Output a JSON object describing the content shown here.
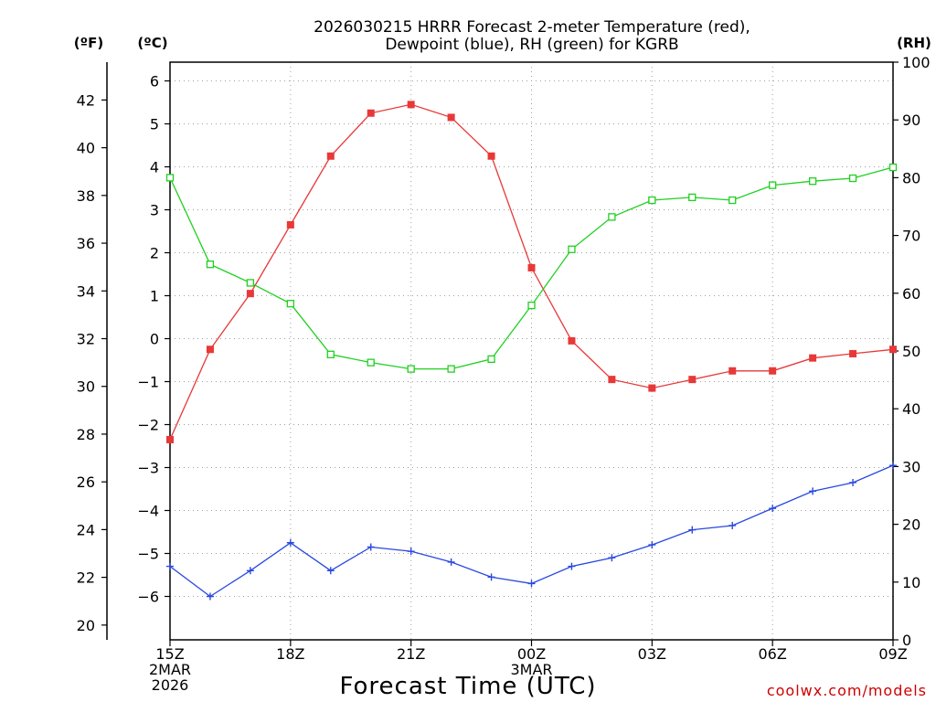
{
  "chart_data": {
    "type": "line",
    "title_line1": "2026030215 HRRR Forecast 2-meter Temperature (red),",
    "title_line2": "Dewpoint (blue), RH (green) for KGRB",
    "xlabel": "Forecast Time (UTC)",
    "credit": "coolwx.com/models",
    "units": {
      "fahrenheit": "(ºF)",
      "celsius": "(ºC)",
      "rh": "(RH)"
    },
    "x_hours": [
      0,
      1,
      2,
      3,
      4,
      5,
      6,
      7,
      8,
      9,
      10,
      11,
      12,
      13,
      14,
      15,
      16,
      17,
      18
    ],
    "xlim": [
      0,
      18
    ],
    "x_ticks": [
      {
        "hour": 0,
        "lines": [
          "15Z",
          "2MAR",
          "2026"
        ]
      },
      {
        "hour": 3,
        "lines": [
          "18Z"
        ]
      },
      {
        "hour": 6,
        "lines": [
          "21Z"
        ]
      },
      {
        "hour": 9,
        "lines": [
          "00Z",
          "3MAR"
        ]
      },
      {
        "hour": 12,
        "lines": [
          "03Z"
        ]
      },
      {
        "hour": 15,
        "lines": [
          "06Z"
        ]
      },
      {
        "hour": 18,
        "lines": [
          "09Z"
        ]
      }
    ],
    "celsius_axis": {
      "ylim": [
        -7,
        6.5
      ],
      "ticks": [
        "6",
        "5",
        "4",
        "3",
        "2",
        "1",
        "0",
        "−1",
        "−2",
        "−3",
        "−4",
        "−5",
        "−6"
      ],
      "tick_values": [
        6,
        5,
        4,
        3,
        2,
        1,
        0,
        -1,
        -2,
        -3,
        -4,
        -5,
        -6
      ]
    },
    "fahrenheit_axis": {
      "ticks": [
        "42",
        "40",
        "38",
        "36",
        "34",
        "32",
        "30",
        "28",
        "26",
        "24",
        "22",
        "20"
      ],
      "tick_values": [
        42,
        40,
        38,
        36,
        34,
        32,
        30,
        28,
        26,
        24,
        22,
        20
      ]
    },
    "rh_axis": {
      "ylim": [
        0,
        100
      ],
      "ticks": [
        "100",
        "90",
        "80",
        "70",
        "60",
        "50",
        "40",
        "30",
        "20",
        "10",
        "0"
      ],
      "tick_values": [
        100,
        90,
        80,
        70,
        60,
        50,
        40,
        30,
        20,
        10,
        0
      ]
    },
    "series": [
      {
        "name": "Temperature",
        "axis": "celsius",
        "color": "#e83838",
        "marker": "filled-square",
        "values": [
          -2.35,
          -0.25,
          1.05,
          2.65,
          4.25,
          5.25,
          5.45,
          5.15,
          4.25,
          1.65,
          -0.05,
          -0.95,
          -1.15,
          -0.95,
          -0.75,
          -0.75,
          -0.45,
          -0.35,
          -0.25
        ]
      },
      {
        "name": "Dewpoint",
        "axis": "celsius",
        "color": "#2848e0",
        "marker": "plus",
        "values": [
          -5.3,
          -6.0,
          -5.4,
          -4.75,
          -5.4,
          -4.85,
          -4.95,
          -5.2,
          -5.55,
          -5.7,
          -5.3,
          -5.1,
          -4.8,
          -4.45,
          -4.35,
          -3.95,
          -3.55,
          -3.35,
          -2.95
        ]
      },
      {
        "name": "RH",
        "axis": "rh",
        "color": "#20d020",
        "marker": "open-square",
        "values": [
          80,
          65,
          61.8,
          58.2,
          49.4,
          48,
          46.9,
          46.9,
          48.6,
          57.9,
          67.6,
          73.2,
          76.1,
          76.6,
          76.1,
          78.7,
          79.4,
          79.9,
          81.8
        ]
      }
    ]
  }
}
